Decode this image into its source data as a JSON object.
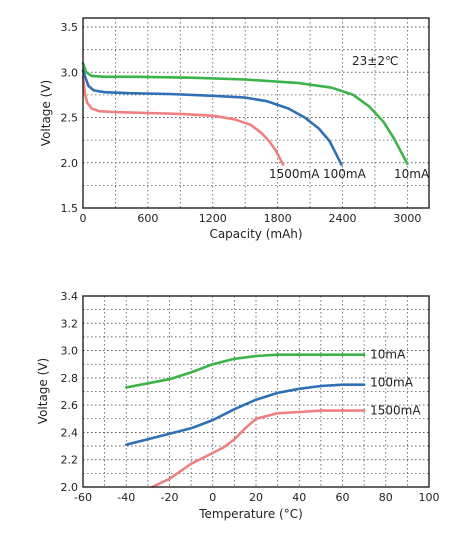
{
  "chart_data": [
    {
      "type": "line",
      "title": "",
      "xlabel": "Capacity (mAh)",
      "ylabel": "Voltage (V)",
      "xlim": [
        0,
        3200
      ],
      "ylim": [
        1.5,
        3.6
      ],
      "xticks": [
        0,
        600,
        1200,
        1800,
        2400,
        3000
      ],
      "yticks": [
        1.5,
        2.0,
        2.5,
        3.0,
        3.5
      ],
      "ytick_labels": [
        "1.5",
        "2.0",
        "2.5",
        "3.0",
        "3.5"
      ],
      "grid": true,
      "annotation": "23±2℃",
      "series": [
        {
          "name": "1500mA",
          "color": "#f08080",
          "x": [
            0,
            20,
            40,
            80,
            150,
            300,
            600,
            900,
            1200,
            1400,
            1550,
            1650,
            1720,
            1780,
            1820,
            1850
          ],
          "y": [
            2.95,
            2.75,
            2.66,
            2.6,
            2.57,
            2.56,
            2.55,
            2.54,
            2.52,
            2.48,
            2.42,
            2.33,
            2.24,
            2.14,
            2.05,
            1.98
          ]
        },
        {
          "name": "100mA",
          "color": "#2f6fb3",
          "x": [
            0,
            20,
            50,
            100,
            200,
            400,
            800,
            1200,
            1500,
            1700,
            1900,
            2050,
            2180,
            2280,
            2340,
            2390
          ],
          "y": [
            3.02,
            2.95,
            2.85,
            2.8,
            2.78,
            2.77,
            2.76,
            2.74,
            2.72,
            2.68,
            2.6,
            2.5,
            2.38,
            2.24,
            2.1,
            1.98
          ]
        },
        {
          "name": "10mA",
          "color": "#3cb34a",
          "x": [
            0,
            30,
            80,
            200,
            500,
            1000,
            1500,
            2000,
            2300,
            2500,
            2650,
            2780,
            2880,
            2950,
            3000
          ],
          "y": [
            3.1,
            3.0,
            2.96,
            2.95,
            2.95,
            2.94,
            2.92,
            2.88,
            2.83,
            2.75,
            2.62,
            2.45,
            2.26,
            2.1,
            1.99
          ]
        }
      ]
    },
    {
      "type": "line",
      "title": "",
      "xlabel": "Temperature (°C)",
      "ylabel": "Voltage (V)",
      "xlim": [
        -60,
        100
      ],
      "ylim": [
        2.0,
        3.4
      ],
      "xticks": [
        -60,
        -40,
        -20,
        0,
        20,
        40,
        60,
        80,
        100
      ],
      "yticks": [
        2.0,
        2.2,
        2.4,
        2.6,
        2.8,
        3.0,
        3.2,
        3.4
      ],
      "ytick_labels": [
        "2.0",
        "2.2",
        "2.4",
        "2.6",
        "2.8",
        "3.0",
        "3.2",
        "3.4"
      ],
      "grid": true,
      "series": [
        {
          "name": "10mA",
          "color": "#3cb34a",
          "x": [
            -40,
            -30,
            -20,
            -10,
            0,
            10,
            20,
            30,
            40,
            50,
            60,
            70
          ],
          "y": [
            2.73,
            2.76,
            2.79,
            2.84,
            2.9,
            2.94,
            2.96,
            2.97,
            2.97,
            2.97,
            2.97,
            2.97
          ]
        },
        {
          "name": "100mA",
          "color": "#2f6fb3",
          "x": [
            -40,
            -30,
            -20,
            -10,
            0,
            10,
            20,
            30,
            40,
            50,
            60,
            70
          ],
          "y": [
            2.31,
            2.35,
            2.39,
            2.43,
            2.49,
            2.57,
            2.64,
            2.69,
            2.72,
            2.74,
            2.75,
            2.75
          ]
        },
        {
          "name": "1500mA",
          "color": "#f08080",
          "x": [
            -28,
            -20,
            -10,
            0,
            5,
            10,
            15,
            20,
            30,
            40,
            50,
            60,
            70
          ],
          "y": [
            2.0,
            2.06,
            2.17,
            2.25,
            2.29,
            2.35,
            2.43,
            2.5,
            2.54,
            2.55,
            2.56,
            2.56,
            2.56
          ]
        }
      ]
    }
  ]
}
